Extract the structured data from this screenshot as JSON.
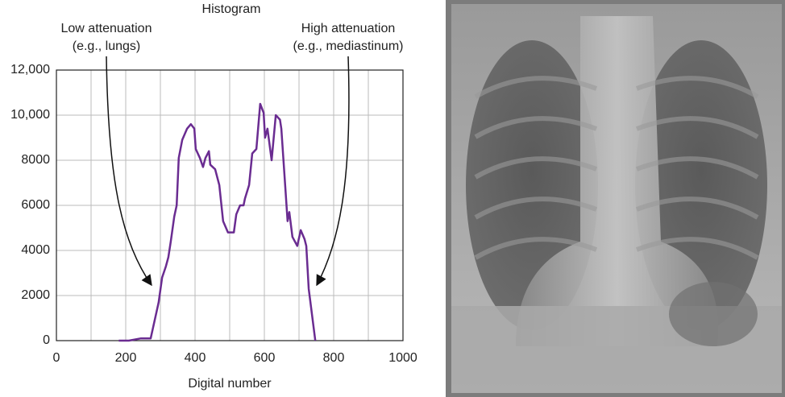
{
  "chart_data": {
    "type": "line",
    "title": "Histogram",
    "xlabel": "Digital number",
    "annotations": [
      {
        "lines": [
          "Low attenuation",
          "(e.g., lungs)"
        ]
      },
      {
        "lines": [
          "High attenuation",
          "(e.g., mediastinum)"
        ]
      }
    ],
    "xlim": [
      0,
      1000
    ],
    "xticks": [
      0,
      200,
      400,
      600,
      800,
      1000
    ],
    "ylim": [
      0,
      12000
    ],
    "yticks": [
      0,
      2000,
      4000,
      6000,
      8000,
      {
        "value": 10000,
        "label": "10,000"
      },
      {
        "value": 12000,
        "label": "12,000"
      }
    ],
    "grid": true,
    "series": [
      {
        "color": "#6a2c91",
        "x": [
          180,
          209,
          244,
          272,
          295,
          305,
          316,
          323,
          330,
          340,
          347,
          353,
          363,
          377,
          388,
          398,
          402,
          414,
          423,
          430,
          440,
          444,
          458,
          470,
          481,
          495,
          512,
          519,
          530,
          540,
          544,
          556,
          565,
          577,
          588,
          598,
          602,
          609,
          621,
          633,
          645,
          649,
          660,
          667,
          672,
          681,
          695,
          705,
          716,
          721,
          728,
          747
        ],
        "values": [
          0,
          0,
          100,
          100,
          1700,
          2800,
          3300,
          3700,
          4400,
          5500,
          6000,
          8100,
          8900,
          9400,
          9600,
          9400,
          8500,
          8100,
          7700,
          8100,
          8400,
          7800,
          7600,
          6900,
          5300,
          4800,
          4800,
          5600,
          6000,
          6000,
          6300,
          6900,
          8300,
          8500,
          10500,
          10100,
          9000,
          9400,
          8000,
          10000,
          9800,
          9400,
          6900,
          5300,
          5700,
          4600,
          4200,
          4900,
          4500,
          4200,
          2300,
          0
        ]
      }
    ]
  }
}
